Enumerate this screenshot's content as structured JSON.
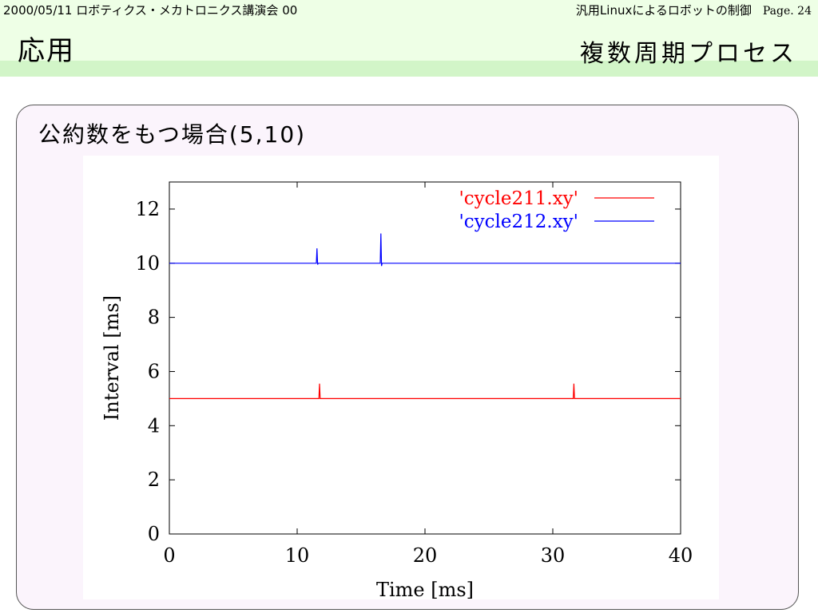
{
  "header": {
    "left": "2000/05/11 ロボティクス・メカトロニクス講演会 00",
    "right": "汎用Linuxによるロボットの制御",
    "page": "Page. 24"
  },
  "slide": {
    "title_left": "応用",
    "title_right": "複数周期プロセス",
    "panel_title": "公約数をもつ場合(5,10)"
  },
  "chart_data": {
    "type": "line",
    "xlabel": "Time [ms]",
    "ylabel": "Interval [ms]",
    "xlim": [
      0,
      40
    ],
    "ylim": [
      0,
      13
    ],
    "xticks": [
      0,
      10,
      20,
      30,
      40
    ],
    "yticks": [
      0,
      2,
      4,
      6,
      8,
      10,
      12
    ],
    "legend_position": "top-right",
    "grid": false,
    "series": [
      {
        "name": "'cycle211.xy'",
        "color": "#ff0000",
        "x": [
          0,
          11.7,
          11.75,
          11.8,
          11.85,
          31.6,
          31.65,
          31.7,
          31.75,
          40
        ],
        "y": [
          5,
          5,
          5.55,
          5,
          5,
          5,
          5.55,
          5,
          5,
          5
        ]
      },
      {
        "name": "'cycle212.xy'",
        "color": "#0000ff",
        "x": [
          0,
          11.5,
          11.55,
          11.6,
          11.65,
          16.5,
          16.55,
          16.6,
          16.65,
          40
        ],
        "y": [
          10,
          10,
          10.55,
          9.95,
          10,
          10,
          11.1,
          9.9,
          10,
          10
        ]
      }
    ]
  }
}
